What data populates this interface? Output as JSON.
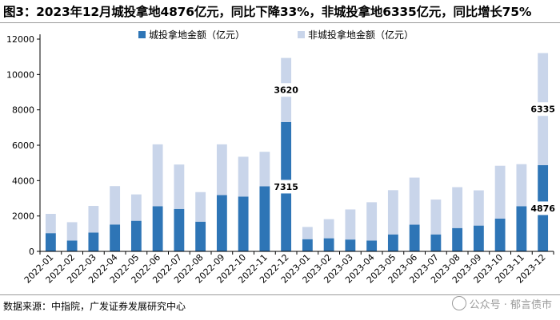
{
  "title": "图3：2023年12月城投拿地4876亿元，同比下降33%，非城投拿地6335亿元，同比增长75%",
  "source": "数据来源：中指院，广发证券发展研究中心",
  "watermark": "公众号 · 郁言债市",
  "chart_data": {
    "type": "bar",
    "stacked": true,
    "categories": [
      "2022-01",
      "2022-02",
      "2022-03",
      "2022-04",
      "2022-05",
      "2022-06",
      "2022-07",
      "2022-08",
      "2022-09",
      "2022-10",
      "2022-11",
      "2022-12",
      "2023-01",
      "2023-02",
      "2023-03",
      "2023-04",
      "2023-05",
      "2023-06",
      "2023-07",
      "2023-08",
      "2023-09",
      "2023-10",
      "2023-11",
      "2023-12"
    ],
    "series": [
      {
        "name": "城投拿地金额（亿元）",
        "color": "#2e75b6",
        "values": [
          1030,
          610,
          1060,
          1520,
          1730,
          2550,
          2400,
          1680,
          3180,
          3100,
          3680,
          7315,
          690,
          740,
          670,
          610,
          960,
          1510,
          960,
          1320,
          1460,
          1850,
          2550,
          4876
        ]
      },
      {
        "name": "非城投拿地金额（亿元）",
        "color": "#c9d5ea",
        "values": [
          1090,
          1040,
          1510,
          2170,
          1490,
          3500,
          2510,
          1670,
          2870,
          2250,
          1950,
          3620,
          690,
          1080,
          1700,
          2170,
          2500,
          2660,
          1970,
          2310,
          1990,
          2990,
          2380,
          6335
        ]
      }
    ],
    "data_labels": [
      {
        "index": 11,
        "series": 0,
        "text": "7315"
      },
      {
        "index": 11,
        "series": 1,
        "text": "3620"
      },
      {
        "index": 23,
        "series": 0,
        "text": "4876"
      },
      {
        "index": 23,
        "series": 1,
        "text": "6335"
      }
    ],
    "yticks": [
      "0",
      "2000",
      "4000",
      "6000",
      "8000",
      "10000",
      "12000"
    ],
    "ylim": [
      0,
      12000
    ],
    "legend_position": "top-center",
    "grid": false
  }
}
